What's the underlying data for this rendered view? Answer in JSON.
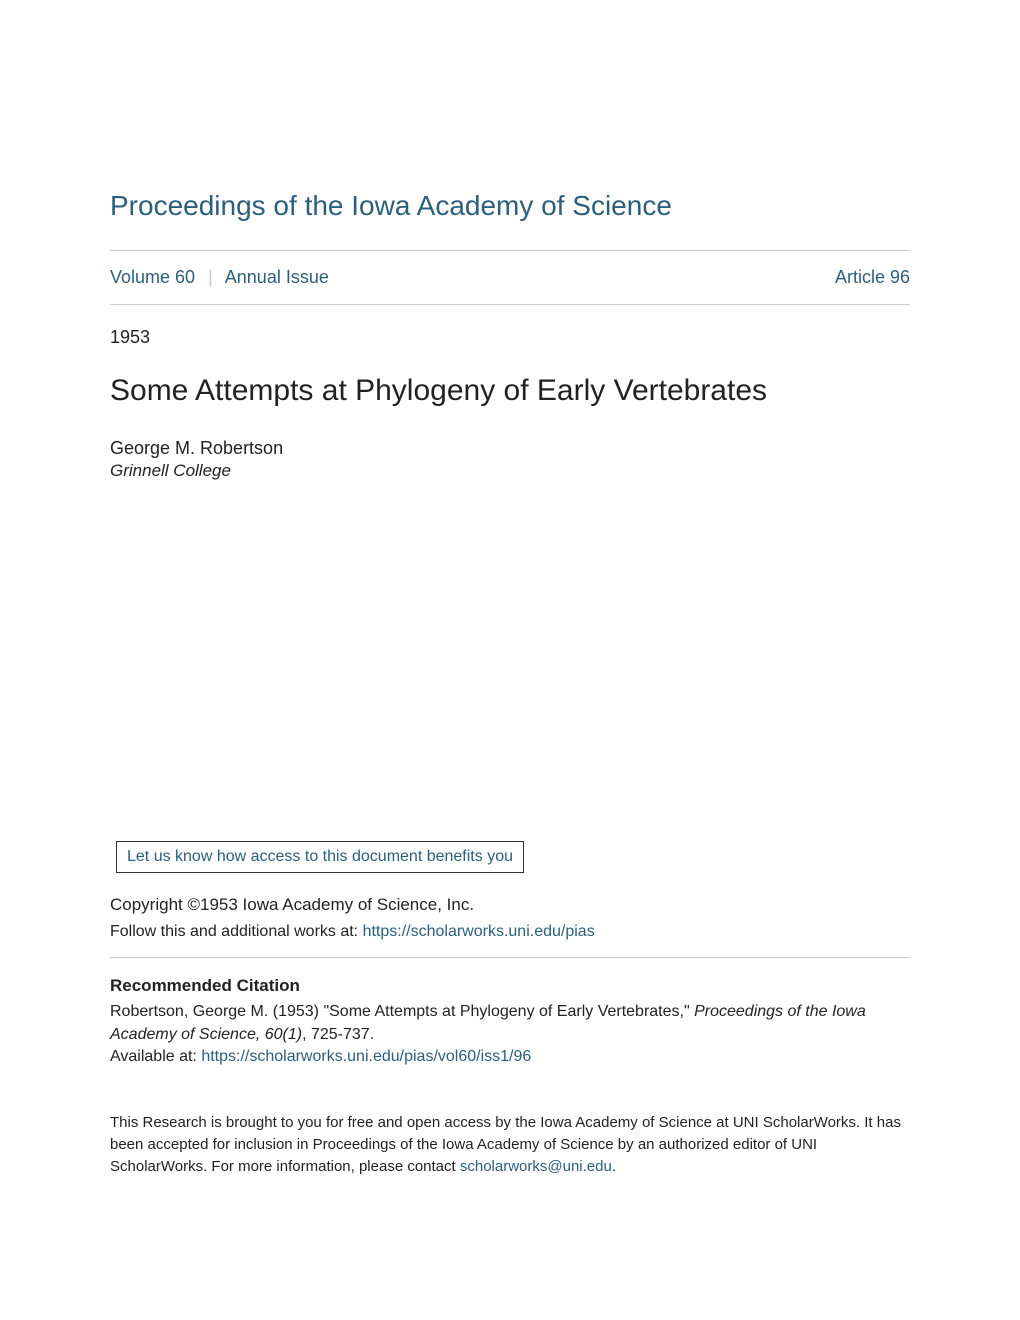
{
  "journal": {
    "title": "Proceedings of the Iowa Academy of Science",
    "title_color": "#2c5f7c"
  },
  "volume": {
    "number": "Volume 60",
    "issue": "Annual Issue",
    "article": "Article 96"
  },
  "article": {
    "year": "1953",
    "title": "Some Attempts at Phylogeny of Early Vertebrates",
    "author": "George M. Robertson",
    "affiliation": "Grinnell College"
  },
  "benefits": {
    "text": "Let us know how access to this document benefits you"
  },
  "copyright": {
    "text": "Copyright ©1953 Iowa Academy of Science, Inc."
  },
  "follow": {
    "prefix": "Follow this and additional works at: ",
    "link": "https://scholarworks.uni.edu/pias"
  },
  "citation": {
    "heading": "Recommended Citation",
    "author_year": "Robertson, George M. (1953) \"Some Attempts at Phylogeny of Early Vertebrates,\" ",
    "journal_italic": "Proceedings of the Iowa Academy of Science, 60(1)",
    "pages": ", 725-737.",
    "available_prefix": "Available at: ",
    "available_link": "https://scholarworks.uni.edu/pias/vol60/iss1/96"
  },
  "footer": {
    "text_part1": "This Research is brought to you for free and open access by the Iowa Academy of Science at UNI ScholarWorks. It has been accepted for inclusion in Proceedings of the Iowa Academy of Science by an authorized editor of UNI ScholarWorks. For more information, please contact ",
    "contact_link": "scholarworks@uni.edu",
    "text_part2": "."
  },
  "colors": {
    "link": "#2c5f7c",
    "text": "#222222",
    "divider": "#cccccc",
    "background": "#ffffff"
  },
  "fonts": {
    "journal_title_size": 28,
    "article_title_size": 30,
    "body_size": 17,
    "small_size": 15
  }
}
